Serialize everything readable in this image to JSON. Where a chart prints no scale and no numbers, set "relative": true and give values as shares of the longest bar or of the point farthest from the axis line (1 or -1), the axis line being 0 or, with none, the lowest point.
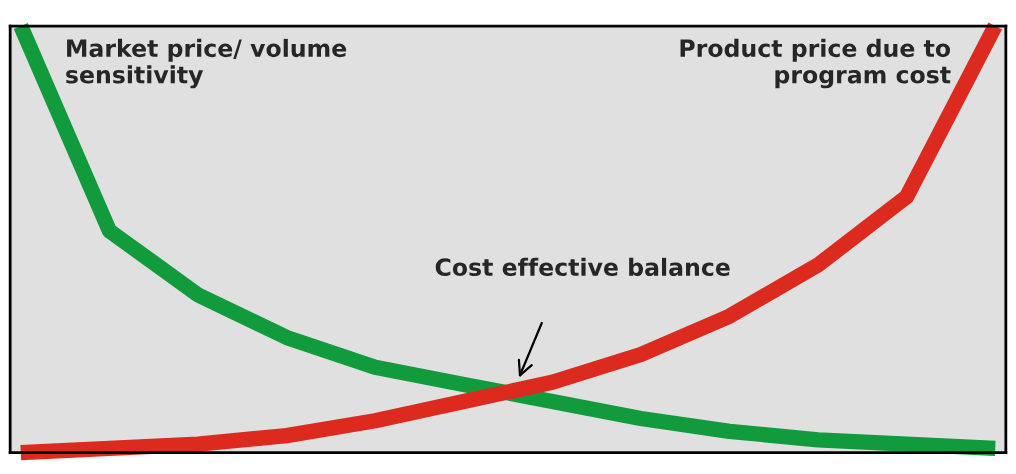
{
  "chart_data": {
    "type": "line",
    "relative": true,
    "categories": [
      null,
      null,
      null,
      null,
      null,
      null,
      null,
      null,
      null,
      null,
      null,
      null
    ],
    "series": [
      {
        "name": "Market price/ volume sensitivity",
        "color": "#119b3c",
        "values": [
          1.0,
          0.52,
          0.37,
          0.27,
          0.2,
          0.16,
          0.12,
          0.08,
          0.05,
          0.03,
          0.02,
          0.01
        ]
      },
      {
        "name": "Product price due to program cost",
        "color": "#dd2a1f",
        "values": [
          0.0,
          0.01,
          0.02,
          0.04,
          0.075,
          0.12,
          0.165,
          0.23,
          0.32,
          0.44,
          0.6,
          1.0
        ]
      }
    ],
    "annotations": [
      "Cost effective balance"
    ],
    "grid": false,
    "legend": false,
    "marker": "none",
    "line_style": "solid"
  }
}
